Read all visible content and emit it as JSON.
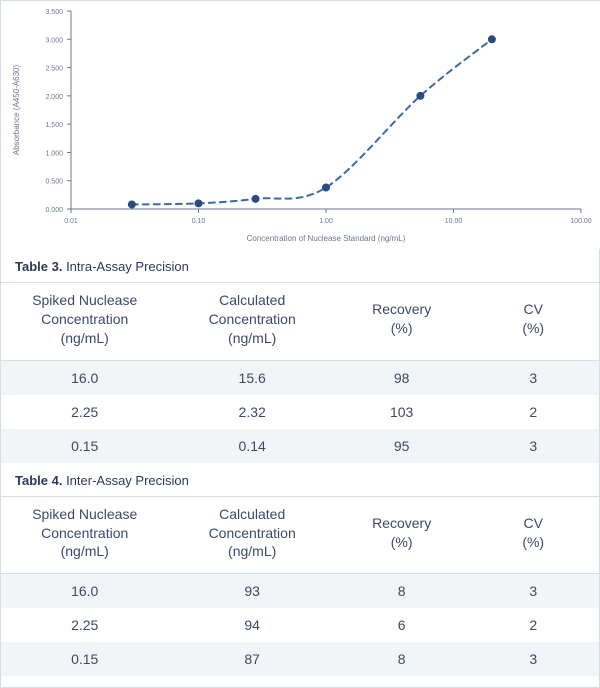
{
  "chart": {
    "type": "line",
    "ylabel": "Absorbance (A450-A630)",
    "xlabel": "Concentration of Nuclease Standard (ng/mL)",
    "label_fontsize": 8,
    "tick_fontsize": 7,
    "tick_color": "#6b7690",
    "axis_color": "#6b7690",
    "background_color": "#ffffff",
    "grid": false,
    "x_scale": "log",
    "y_scale": "linear",
    "xlim": [
      0.01,
      100.0
    ],
    "ylim": [
      0.0,
      3.5
    ],
    "x_ticks": [
      0.01,
      0.1,
      1.0,
      10.0,
      100.0
    ],
    "x_tick_labels": [
      "0.01",
      "0.10",
      "1.00",
      "10.00",
      "100.00"
    ],
    "y_ticks": [
      0.0,
      0.5,
      1.0,
      1.5,
      2.0,
      2.5,
      3.0,
      3.5
    ],
    "y_tick_labels": [
      "0.000",
      "0.500",
      "1.000",
      "1.500",
      "2.000",
      "2.500",
      "3.000",
      "3.500"
    ],
    "series": {
      "points_x": [
        0.03,
        0.1,
        0.28,
        1.0,
        5.5,
        20.0
      ],
      "points_y": [
        0.08,
        0.1,
        0.18,
        0.38,
        2.0,
        3.0
      ],
      "line_color": "#3b6ba5",
      "line_dash": "6 5",
      "line_width": 2,
      "marker_color": "#2b4a80",
      "marker_radius": 4,
      "marker_shape": "circle"
    }
  },
  "table3": {
    "title_prefix": "Table 3.",
    "title_rest": " Intra-Assay Precision",
    "columns": [
      "Spiked Nuclease Concentration (ng/mL)",
      "Calculated Concentration (ng/mL)",
      "Recovery (%)",
      "CV (%)"
    ],
    "rows": [
      [
        "16.0",
        "15.6",
        "98",
        "3"
      ],
      [
        "2.25",
        "2.32",
        "103",
        "2"
      ],
      [
        "0.15",
        "0.14",
        "95",
        "3"
      ]
    ]
  },
  "table4": {
    "title_prefix": "Table 4.",
    "title_rest": " Inter-Assay Precision",
    "columns": [
      "Spiked Nuclease Concentration (ng/mL)",
      "Calculated Concentration (ng/mL)",
      "Recovery (%)",
      "CV (%)"
    ],
    "rows": [
      [
        "16.0",
        "93",
        "8",
        "3"
      ],
      [
        "2.25",
        "94",
        "6",
        "2"
      ],
      [
        "0.15",
        "87",
        "8",
        "3"
      ]
    ]
  }
}
